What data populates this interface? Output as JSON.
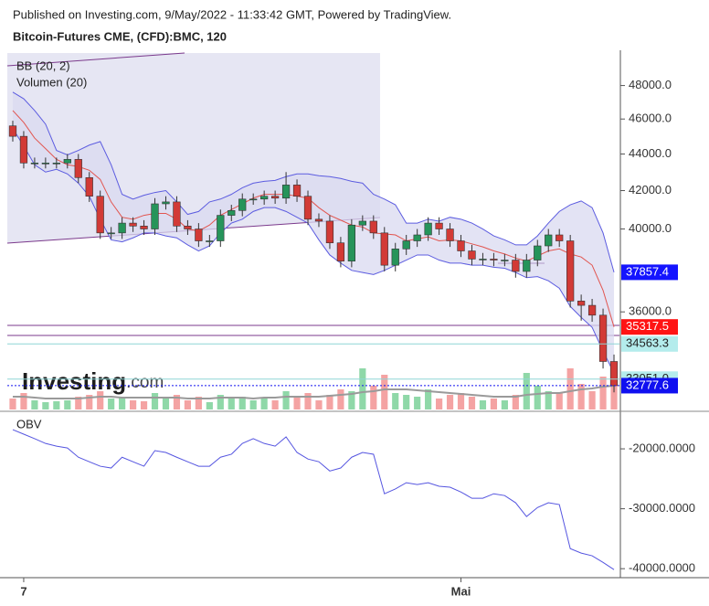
{
  "chart_data": {
    "type": "candlestick",
    "subtitle": "Published on Investing.com, 9/May/2022 - 11:33:42 GMT, Powered by TradingView.",
    "title": "Bitcoin-Futures CME, (CFD):BMC, 120",
    "categories": [
      null,
      "7",
      null,
      null,
      null,
      null,
      null,
      null,
      null,
      null,
      null,
      null,
      null,
      null,
      null,
      null,
      null,
      null,
      null,
      null,
      null,
      null,
      null,
      null,
      null,
      null,
      null,
      null,
      null,
      null,
      null,
      null,
      null,
      null,
      null,
      null,
      null,
      null,
      null,
      null,
      null,
      "Mai",
      null,
      null,
      null,
      null,
      null,
      null,
      null,
      null,
      null,
      null,
      null,
      null,
      null,
      null
    ],
    "open": [
      45600,
      45000,
      43500,
      43500,
      43500,
      43500,
      43700,
      42700,
      41700,
      39800,
      39800,
      40300,
      40150,
      40000,
      41300,
      41400,
      40150,
      40000,
      39400,
      39400,
      40700,
      40950,
      41550,
      41550,
      41700,
      41600,
      42300,
      41700,
      40500,
      40400,
      39300,
      38400,
      40200,
      40400,
      39800,
      38200,
      39000,
      39400,
      39700,
      40300,
      40000,
      39400,
      38900,
      38500,
      38500,
      38450,
      38450,
      37900,
      38450,
      39150,
      39700,
      39400,
      36500,
      36300,
      35850,
      33800
    ],
    "high": [
      45900,
      45300,
      43800,
      43800,
      43800,
      44000,
      44000,
      43000,
      42000,
      40100,
      40600,
      40600,
      40450,
      41600,
      41700,
      41700,
      40450,
      40300,
      39700,
      41000,
      41250,
      41850,
      41850,
      42000,
      42000,
      43000,
      42600,
      42000,
      40800,
      40700,
      39600,
      40500,
      40700,
      40700,
      40100,
      39300,
      39700,
      40000,
      40600,
      40600,
      40300,
      39700,
      39200,
      38800,
      38800,
      38750,
      38750,
      38750,
      39450,
      40000,
      40000,
      39700,
      36800,
      36600,
      36150,
      34100
    ],
    "low": [
      44700,
      43200,
      43200,
      43200,
      43200,
      43200,
      42400,
      41400,
      39500,
      39500,
      39500,
      39850,
      39700,
      39700,
      41000,
      39850,
      39700,
      39100,
      39100,
      39100,
      40400,
      40650,
      41250,
      41250,
      41300,
      41300,
      41400,
      40200,
      40100,
      39000,
      38100,
      38100,
      39900,
      39500,
      37900,
      37900,
      38700,
      39100,
      39400,
      39700,
      39100,
      38600,
      38200,
      38200,
      38150,
      38150,
      37600,
      37600,
      38150,
      38850,
      39100,
      36200,
      35600,
      35550,
      33500,
      32500
    ],
    "close": [
      45000,
      43500,
      43500,
      43500,
      43500,
      43700,
      42700,
      41700,
      39800,
      39800,
      40300,
      40150,
      40000,
      41300,
      41400,
      40150,
      40000,
      39400,
      39400,
      40700,
      40950,
      41550,
      41550,
      41700,
      41600,
      42300,
      41700,
      40500,
      40400,
      39300,
      38400,
      40200,
      40400,
      39800,
      38200,
      39000,
      39400,
      39700,
      40300,
      40000,
      39400,
      38900,
      38500,
      38500,
      38450,
      38450,
      37900,
      38450,
      39150,
      39700,
      39400,
      36500,
      36300,
      35850,
      33800,
      32777.6
    ],
    "up_color": "#26945a",
    "down_color": "#d23a36",
    "close_label_color": "#1010f0",
    "yscale": "log",
    "ylim": [
      31800,
      50200
    ],
    "yticks": [
      {
        "value": 36000,
        "label": "36000.0"
      },
      {
        "value": 40000,
        "label": "40000.0"
      },
      {
        "value": 42000,
        "label": "42000.0"
      },
      {
        "value": 44000,
        "label": "44000.0"
      },
      {
        "value": 46000,
        "label": "46000.0"
      },
      {
        "value": 48000,
        "label": "48000.0"
      }
    ],
    "bollinger": {
      "name": "BB (20, 2)",
      "color": "#5c5ce0",
      "middle_color": "#e2554f",
      "fill": "#d9d9f0",
      "upper_label_color": "#1414ff",
      "middle_label_color": "#ff1414",
      "upper": [
        47600,
        47200,
        46500,
        45700,
        44200,
        43950,
        44200,
        44500,
        44700,
        43400,
        41800,
        41550,
        41750,
        41900,
        42000,
        41400,
        40750,
        40900,
        41400,
        41550,
        41800,
        42150,
        42400,
        42500,
        42550,
        42750,
        42900,
        42900,
        42800,
        42750,
        42650,
        42500,
        42400,
        41800,
        41550,
        41250,
        40300,
        40300,
        40500,
        40400,
        40600,
        40500,
        40300,
        40000,
        39650,
        39450,
        39200,
        39200,
        39650,
        40300,
        40900,
        41250,
        41450,
        41100,
        39800,
        37857.4
      ],
      "middle": [
        46500,
        45800,
        44900,
        44300,
        43700,
        43400,
        43300,
        43100,
        42600,
        41400,
        40600,
        40500,
        40700,
        40800,
        40800,
        40500,
        40000,
        39900,
        40200,
        40700,
        41000,
        41300,
        41600,
        41800,
        41800,
        41800,
        41700,
        41600,
        41100,
        40700,
        40450,
        40200,
        40100,
        39800,
        39750,
        39700,
        39400,
        39500,
        39600,
        39400,
        39450,
        39400,
        39250,
        39100,
        38900,
        38750,
        38550,
        38400,
        38650,
        38900,
        39000,
        38750,
        38600,
        38200,
        37000,
        35317.5
      ],
      "lower": [
        45450,
        44450,
        43400,
        43000,
        43150,
        42900,
        42400,
        41700,
        40500,
        39450,
        39350,
        39550,
        39800,
        39800,
        39650,
        39550,
        39200,
        38900,
        39150,
        39800,
        40300,
        40500,
        40900,
        41100,
        41100,
        40900,
        40600,
        40300,
        39450,
        38700,
        38300,
        37950,
        37850,
        37750,
        37950,
        38200,
        38450,
        38700,
        38700,
        38450,
        38300,
        38300,
        38200,
        38200,
        38100,
        38050,
        37850,
        37600,
        37650,
        37450,
        37100,
        36250,
        35750,
        35300,
        34250,
        33300
      ]
    },
    "volume": {
      "name": "Volumen (20)",
      "up_color": "#8fd8a8",
      "down_color": "#f4a3a3",
      "ma_color": "#9a9a9a",
      "values": [
        12,
        18,
        10,
        8,
        9,
        10,
        14,
        16,
        20,
        12,
        14,
        10,
        9,
        18,
        12,
        16,
        10,
        14,
        8,
        16,
        12,
        14,
        10,
        12,
        10,
        20,
        14,
        18,
        10,
        16,
        22,
        20,
        45,
        26,
        38,
        18,
        16,
        14,
        22,
        12,
        16,
        18,
        14,
        10,
        12,
        10,
        16,
        40,
        26,
        20,
        18,
        45,
        28,
        20,
        36,
        30
      ],
      "ma": [
        14,
        14,
        13,
        12,
        12,
        12,
        12,
        13,
        14,
        14,
        13,
        13,
        13,
        13,
        13,
        13,
        12,
        12,
        12,
        13,
        13,
        13,
        12,
        13,
        13,
        14,
        14,
        14,
        14,
        15,
        16,
        17,
        19,
        20,
        22,
        22,
        22,
        21,
        20,
        19,
        18,
        17,
        16,
        15,
        14,
        14,
        14,
        16,
        17,
        18,
        18,
        20,
        22,
        23,
        25,
        26
      ]
    },
    "levels": [
      {
        "value": 34563.3,
        "label": "34563.3"
      },
      {
        "value": 33051.0,
        "label": "33051.0"
      }
    ],
    "level_color": "#8fd6d6",
    "level_label_color": "#b4ecec",
    "obv": {
      "name": "OBV",
      "color": "#5555e0",
      "values": [
        -16800,
        -17550,
        -18300,
        -19100,
        -19550,
        -19850,
        -21400,
        -22150,
        -22900,
        -23200,
        -21400,
        -22150,
        -22900,
        -20300,
        -20600,
        -21400,
        -22150,
        -22900,
        -22900,
        -21400,
        -20900,
        -19100,
        -18300,
        -19100,
        -19550,
        -18000,
        -20600,
        -21700,
        -22150,
        -23700,
        -23200,
        -21400,
        -20600,
        -20900,
        -27500,
        -26700,
        -25650,
        -25950,
        -25650,
        -26250,
        -26400,
        -27200,
        -28250,
        -28250,
        -27500,
        -27800,
        -29000,
        -31300,
        -29800,
        -29000,
        -29300,
        -36650,
        -37400,
        -37850,
        -38950,
        -40150
      ],
      "ylim": [
        -41500,
        -14500
      ],
      "yticks": [
        {
          "value": -40000,
          "label": "-40000.0000"
        },
        {
          "value": -30000,
          "label": "-30000.0000"
        },
        {
          "value": -20000,
          "label": "-20000.0000"
        }
      ]
    },
    "watermark": [
      "Investing",
      ".com"
    ]
  }
}
